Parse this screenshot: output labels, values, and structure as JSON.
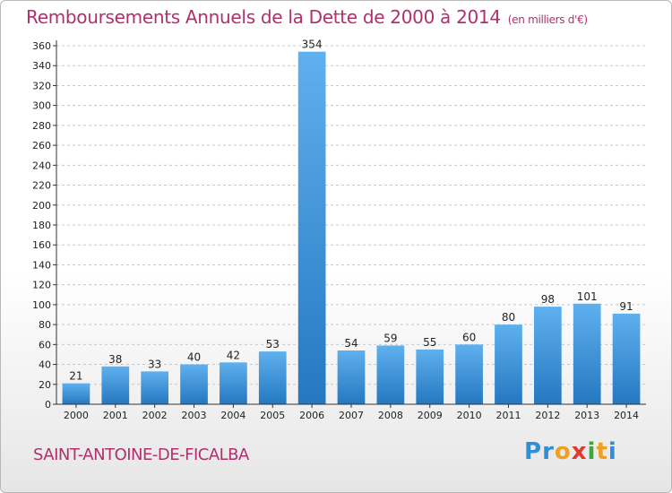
{
  "header": {
    "title": "Remboursements Annuels de la Dette de 2000 à 2014",
    "subtitle": "(en milliers d'€)"
  },
  "footer": {
    "place": "SAINT-ANTOINE-DE-FICALBA",
    "logo": [
      {
        "ch": "P",
        "color": "#2e8fd6"
      },
      {
        "ch": "r",
        "color": "#2e8fd6"
      },
      {
        "ch": "o",
        "color": "#f0a020"
      },
      {
        "ch": "x",
        "color": "#e03a2c"
      },
      {
        "ch": "i",
        "color": "#3aa83a"
      },
      {
        "ch": "t",
        "color": "#f0a020"
      },
      {
        "ch": "i",
        "color": "#2e8fd6"
      }
    ]
  },
  "colors": {
    "bar_top": "#5fb0ee",
    "bar_bottom": "#2478c0",
    "grid": "#c8c8c8",
    "axis": "#333333"
  },
  "chart_data": {
    "type": "bar",
    "categories": [
      "2000",
      "2001",
      "2002",
      "2003",
      "2004",
      "2005",
      "2006",
      "2007",
      "2008",
      "2009",
      "2010",
      "2011",
      "2012",
      "2013",
      "2014"
    ],
    "values": [
      21,
      38,
      33,
      40,
      42,
      53,
      354,
      54,
      59,
      55,
      60,
      80,
      98,
      101,
      91
    ],
    "title": "Remboursements Annuels de la Dette de 2000 à 2014",
    "ylim": [
      0,
      360
    ],
    "yticks": [
      0,
      20,
      40,
      60,
      80,
      100,
      120,
      140,
      160,
      180,
      200,
      220,
      240,
      260,
      280,
      300,
      320,
      340,
      360
    ],
    "grid": true,
    "data_labels": true
  }
}
